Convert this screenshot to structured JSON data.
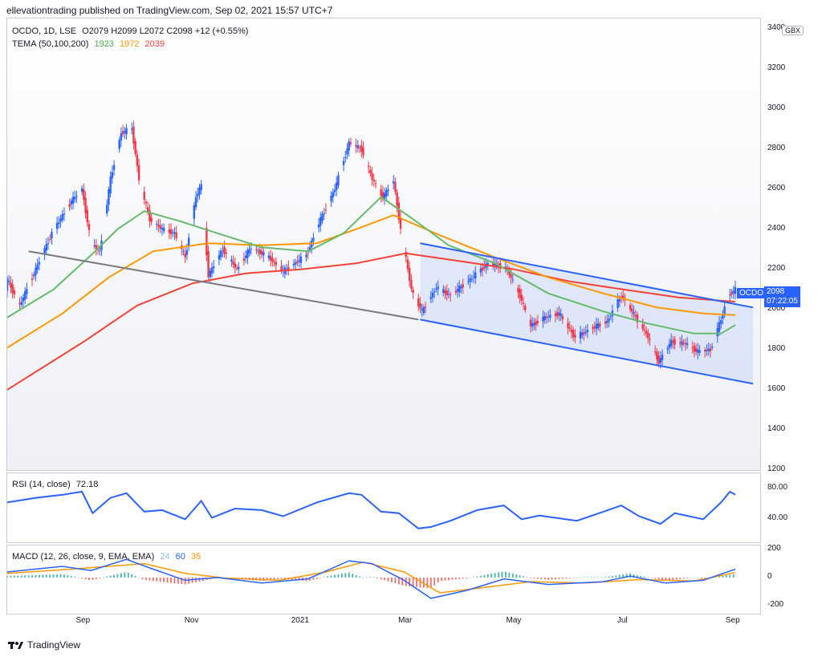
{
  "header": {
    "publisher": "ellevationtrading published on TradingView.com, Sep 02, 2021 15:57 UTC+7"
  },
  "currency": "GBX",
  "legend": {
    "symbol": "OCDO, 1D, LSE",
    "ohlc": "O2079  H2099  L2072  C2098  +12 (+0.55%)",
    "tema_label": "TEMA (50,100,200)",
    "tema_v1": "1923",
    "tema_v2": "1972",
    "tema_v3": "2039",
    "rsi_label": "RSI (14, close)",
    "rsi_value": "72.18",
    "macd_label": "MACD (12, 26, close, 9, EMA, EMA)",
    "macd_v1": "24",
    "macd_v2": "60",
    "macd_v3": "35"
  },
  "price_badge": {
    "symbol": "OCDO",
    "price": "2098",
    "countdown": "07:22:05"
  },
  "footer": {
    "brand": "TradingView"
  },
  "colors": {
    "up": "#2962ff",
    "down": "#f23645",
    "tema50": "#66bb6a",
    "tema100": "#ff9800",
    "tema200": "#f44336",
    "trend": "#2962ff",
    "rsi": "#2962ff",
    "macd": "#2962ff",
    "signal": "#ff9800"
  },
  "chart_data": [
    {
      "type": "candlestick",
      "y_ticks": [
        "3400",
        "3200",
        "3000",
        "2800",
        "2600",
        "2400",
        "2200",
        "2000",
        "1800",
        "1600",
        "1400",
        "1200"
      ],
      "ylim": [
        1200,
        3450
      ],
      "x_ticks": [
        "Sep",
        "Nov",
        "2021",
        "Mar",
        "May",
        "Jul",
        "Sep"
      ],
      "x_tick_dates": [
        "2020-09-01",
        "2020-11-01",
        "2021-01-01",
        "2021-03-01",
        "2021-05-01",
        "2021-07-01",
        "2021-09-01"
      ],
      "xlim": [
        "2020-07-20",
        "2021-09-16"
      ],
      "price_path": [
        [
          "2020-07-20",
          2150
        ],
        [
          "2020-07-27",
          2020
        ],
        [
          "2020-08-05",
          2200
        ],
        [
          "2020-08-14",
          2380
        ],
        [
          "2020-08-25",
          2540
        ],
        [
          "2020-08-31",
          2600
        ],
        [
          "2020-09-05",
          2330
        ],
        [
          "2020-09-10",
          2290
        ],
        [
          "2020-09-16",
          2650
        ],
        [
          "2020-09-22",
          2880
        ],
        [
          "2020-09-28",
          2900
        ],
        [
          "2020-10-02",
          2650
        ],
        [
          "2020-10-08",
          2450
        ],
        [
          "2020-10-15",
          2400
        ],
        [
          "2020-10-22",
          2380
        ],
        [
          "2020-10-28",
          2260
        ],
        [
          "2020-11-03",
          2560
        ],
        [
          "2020-11-06",
          2620
        ],
        [
          "2020-11-10",
          2170
        ],
        [
          "2020-11-18",
          2300
        ],
        [
          "2020-11-26",
          2200
        ],
        [
          "2020-12-04",
          2310
        ],
        [
          "2020-12-14",
          2260
        ],
        [
          "2020-12-22",
          2190
        ],
        [
          "2021-01-04",
          2270
        ],
        [
          "2021-01-12",
          2450
        ],
        [
          "2021-01-20",
          2600
        ],
        [
          "2021-01-28",
          2830
        ],
        [
          "2021-02-04",
          2800
        ],
        [
          "2021-02-10",
          2650
        ],
        [
          "2021-02-16",
          2560
        ],
        [
          "2021-02-22",
          2640
        ],
        [
          "2021-02-26",
          2400
        ],
        [
          "2021-03-04",
          2100
        ],
        [
          "2021-03-10",
          1990
        ],
        [
          "2021-03-18",
          2110
        ],
        [
          "2021-03-26",
          2070
        ],
        [
          "2021-04-06",
          2150
        ],
        [
          "2021-04-16",
          2230
        ],
        [
          "2021-04-26",
          2210
        ],
        [
          "2021-05-04",
          2070
        ],
        [
          "2021-05-10",
          1920
        ],
        [
          "2021-05-18",
          1960
        ],
        [
          "2021-05-26",
          1980
        ],
        [
          "2021-06-04",
          1860
        ],
        [
          "2021-06-14",
          1910
        ],
        [
          "2021-06-22",
          1940
        ],
        [
          "2021-06-30",
          2070
        ],
        [
          "2021-07-06",
          1990
        ],
        [
          "2021-07-14",
          1880
        ],
        [
          "2021-07-21",
          1740
        ],
        [
          "2021-07-28",
          1840
        ],
        [
          "2021-08-05",
          1830
        ],
        [
          "2021-08-12",
          1790
        ],
        [
          "2021-08-19",
          1800
        ],
        [
          "2021-08-25",
          1950
        ],
        [
          "2021-08-29",
          2070
        ],
        [
          "2021-09-02",
          2098
        ]
      ],
      "tema50": [
        [
          "2020-07-20",
          1960
        ],
        [
          "2020-08-15",
          2100
        ],
        [
          "2020-09-05",
          2270
        ],
        [
          "2020-09-20",
          2400
        ],
        [
          "2020-10-05",
          2490
        ],
        [
          "2020-10-25",
          2440
        ],
        [
          "2020-11-15",
          2380
        ],
        [
          "2020-12-10",
          2310
        ],
        [
          "2021-01-05",
          2290
        ],
        [
          "2021-01-25",
          2380
        ],
        [
          "2021-02-15",
          2560
        ],
        [
          "2021-03-05",
          2450
        ],
        [
          "2021-03-25",
          2320
        ],
        [
          "2021-04-20",
          2230
        ],
        [
          "2021-05-20",
          2080
        ],
        [
          "2021-06-20",
          1990
        ],
        [
          "2021-07-15",
          1930
        ],
        [
          "2021-08-10",
          1880
        ],
        [
          "2021-08-25",
          1880
        ],
        [
          "2021-09-02",
          1923
        ]
      ],
      "tema100": [
        [
          "2020-07-20",
          1810
        ],
        [
          "2020-08-20",
          1980
        ],
        [
          "2020-09-15",
          2160
        ],
        [
          "2020-10-10",
          2290
        ],
        [
          "2020-11-10",
          2330
        ],
        [
          "2020-12-10",
          2320
        ],
        [
          "2021-01-10",
          2330
        ],
        [
          "2021-02-01",
          2400
        ],
        [
          "2021-02-22",
          2470
        ],
        [
          "2021-03-20",
          2370
        ],
        [
          "2021-04-20",
          2260
        ],
        [
          "2021-05-20",
          2160
        ],
        [
          "2021-06-20",
          2080
        ],
        [
          "2021-07-20",
          2010
        ],
        [
          "2021-08-15",
          1980
        ],
        [
          "2021-09-02",
          1972
        ]
      ],
      "tema200": [
        [
          "2020-07-20",
          1600
        ],
        [
          "2020-09-01",
          1840
        ],
        [
          "2020-10-01",
          2020
        ],
        [
          "2020-11-01",
          2130
        ],
        [
          "2020-12-01",
          2180
        ],
        [
          "2021-01-01",
          2200
        ],
        [
          "2021-02-01",
          2230
        ],
        [
          "2021-03-01",
          2280
        ],
        [
          "2021-04-01",
          2240
        ],
        [
          "2021-05-01",
          2200
        ],
        [
          "2021-06-01",
          2140
        ],
        [
          "2021-07-01",
          2100
        ],
        [
          "2021-08-01",
          2060
        ],
        [
          "2021-09-02",
          2039
        ]
      ],
      "trendlines": [
        {
          "name": "support",
          "from": [
            "2020-08-01",
            2290
          ],
          "to": [
            "2021-03-08",
            1950
          ],
          "color": "#787b86"
        },
        {
          "name": "channel-upper",
          "from": [
            "2021-03-09",
            2330
          ],
          "to": [
            "2021-09-12",
            2010
          ],
          "color": "#2962ff"
        },
        {
          "name": "channel-lower",
          "from": [
            "2021-03-09",
            1950
          ],
          "to": [
            "2021-09-12",
            1630
          ],
          "color": "#2962ff"
        }
      ]
    },
    {
      "type": "line",
      "y_ticks": [
        "80.00",
        "40.00"
      ],
      "ylim": [
        10,
        100
      ],
      "values": [
        [
          "2020-07-20",
          62
        ],
        [
          "2020-08-05",
          68
        ],
        [
          "2020-08-20",
          72
        ],
        [
          "2020-08-31",
          76
        ],
        [
          "2020-09-06",
          48
        ],
        [
          "2020-09-16",
          68
        ],
        [
          "2020-09-25",
          74
        ],
        [
          "2020-10-05",
          50
        ],
        [
          "2020-10-15",
          52
        ],
        [
          "2020-10-28",
          40
        ],
        [
          "2020-11-06",
          64
        ],
        [
          "2020-11-12",
          42
        ],
        [
          "2020-11-25",
          54
        ],
        [
          "2020-12-10",
          52
        ],
        [
          "2020-12-22",
          44
        ],
        [
          "2021-01-10",
          62
        ],
        [
          "2021-01-28",
          74
        ],
        [
          "2021-02-04",
          72
        ],
        [
          "2021-02-15",
          50
        ],
        [
          "2021-02-25",
          48
        ],
        [
          "2021-03-08",
          28
        ],
        [
          "2021-03-15",
          30
        ],
        [
          "2021-03-26",
          38
        ],
        [
          "2021-04-10",
          52
        ],
        [
          "2021-04-25",
          58
        ],
        [
          "2021-05-05",
          40
        ],
        [
          "2021-05-15",
          45
        ],
        [
          "2021-06-05",
          38
        ],
        [
          "2021-06-20",
          50
        ],
        [
          "2021-06-30",
          58
        ],
        [
          "2021-07-10",
          44
        ],
        [
          "2021-07-22",
          34
        ],
        [
          "2021-07-30",
          48
        ],
        [
          "2021-08-15",
          40
        ],
        [
          "2021-08-25",
          62
        ],
        [
          "2021-08-30",
          76
        ],
        [
          "2021-09-02",
          72.18
        ]
      ]
    },
    {
      "type": "line",
      "y_ticks": [
        "200",
        "0",
        "-200"
      ],
      "ylim": [
        -260,
        230
      ],
      "macd": [
        [
          "2020-07-20",
          40
        ],
        [
          "2020-08-20",
          80
        ],
        [
          "2020-09-05",
          50
        ],
        [
          "2020-09-25",
          130
        ],
        [
          "2020-10-10",
          60
        ],
        [
          "2020-10-28",
          -20
        ],
        [
          "2020-11-15",
          0
        ],
        [
          "2020-12-10",
          -40
        ],
        [
          "2021-01-05",
          -10
        ],
        [
          "2021-01-28",
          120
        ],
        [
          "2021-02-10",
          100
        ],
        [
          "2021-02-28",
          -20
        ],
        [
          "2021-03-15",
          -150
        ],
        [
          "2021-04-05",
          -90
        ],
        [
          "2021-04-25",
          -10
        ],
        [
          "2021-05-20",
          -50
        ],
        [
          "2021-06-20",
          -30
        ],
        [
          "2021-07-05",
          10
        ],
        [
          "2021-07-25",
          -40
        ],
        [
          "2021-08-15",
          -20
        ],
        [
          "2021-09-02",
          60
        ]
      ],
      "signal": [
        [
          "2020-07-20",
          30
        ],
        [
          "2020-08-25",
          60
        ],
        [
          "2020-09-15",
          80
        ],
        [
          "2020-10-05",
          100
        ],
        [
          "2020-10-28",
          30
        ],
        [
          "2020-11-20",
          -5
        ],
        [
          "2020-12-20",
          -20
        ],
        [
          "2021-01-15",
          40
        ],
        [
          "2021-02-05",
          110
        ],
        [
          "2021-02-28",
          40
        ],
        [
          "2021-03-20",
          -110
        ],
        [
          "2021-04-15",
          -70
        ],
        [
          "2021-05-10",
          -30
        ],
        [
          "2021-06-10",
          -40
        ],
        [
          "2021-07-10",
          -15
        ],
        [
          "2021-08-10",
          -25
        ],
        [
          "2021-09-02",
          35
        ]
      ]
    }
  ]
}
